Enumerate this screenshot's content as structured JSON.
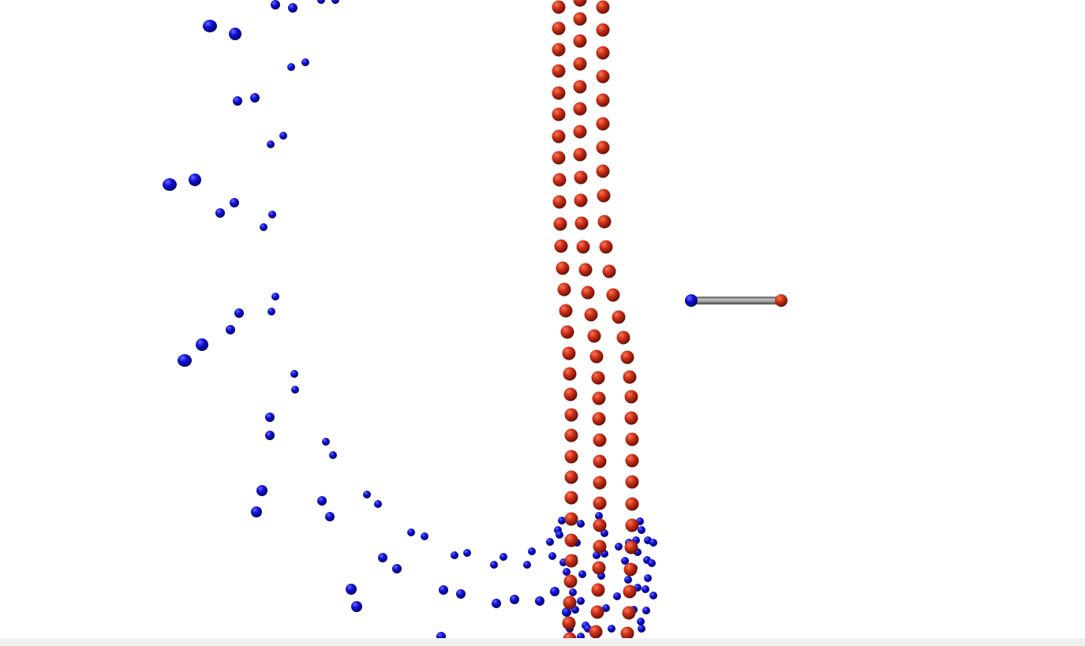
{
  "scene": {
    "background_color": "#ffffff",
    "bottom_bar_color": "#f1f1f2",
    "atom_colors": {
      "blue": "#1010d8",
      "blue_dark": "#04046a",
      "red": "#d03018",
      "red_dark": "#6a1208",
      "bond": "#8a8a8a"
    },
    "atom_types": [
      "blue",
      "red"
    ],
    "bond_icon": "atom-bond-icon"
  }
}
